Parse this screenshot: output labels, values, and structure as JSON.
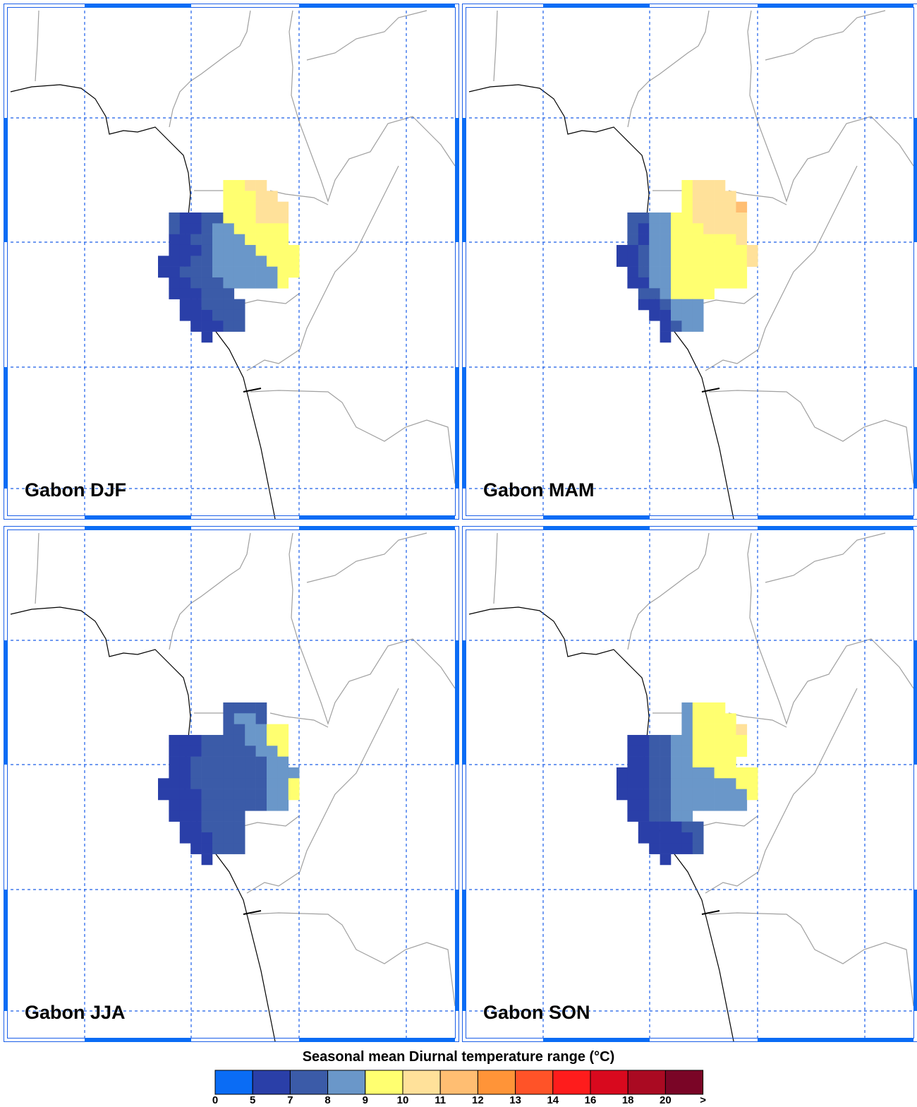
{
  "panels": [
    {
      "title": "Gabon DJF",
      "cells": [
        [
          null,
          null,
          null,
          null,
          null,
          null,
          9.5,
          9.5,
          10.5,
          10.5,
          null,
          null,
          null
        ],
        [
          null,
          null,
          null,
          null,
          null,
          null,
          9.5,
          9.5,
          9.5,
          10.5,
          10.5,
          null,
          null
        ],
        [
          null,
          null,
          null,
          null,
          null,
          null,
          9.5,
          9.5,
          9.5,
          10.5,
          10.5,
          10.5,
          null
        ],
        [
          null,
          7.5,
          6,
          6,
          7.5,
          7.5,
          9.5,
          9.5,
          9.5,
          10.5,
          10.5,
          10.5,
          null
        ],
        [
          null,
          7.5,
          6,
          6,
          7.5,
          8.5,
          8.5,
          9.5,
          9.5,
          9.5,
          9.5,
          9.5,
          null
        ],
        [
          null,
          6,
          6,
          7.5,
          7.5,
          8.5,
          8.5,
          8.5,
          9.5,
          9.5,
          9.5,
          9.5,
          null
        ],
        [
          null,
          6,
          6,
          6,
          7.5,
          8.5,
          8.5,
          8.5,
          8.5,
          9.5,
          9.5,
          9.5,
          9.5
        ],
        [
          6,
          6,
          6,
          7.5,
          7.5,
          8.5,
          8.5,
          8.5,
          8.5,
          8.5,
          9.5,
          9.5,
          9.5
        ],
        [
          6,
          6,
          7.5,
          7.5,
          7.5,
          8.5,
          8.5,
          8.5,
          8.5,
          8.5,
          8.5,
          9.5,
          9.5
        ],
        [
          null,
          6,
          6,
          7.5,
          7.5,
          7.5,
          8.5,
          8.5,
          8.5,
          8.5,
          8.5,
          9.5,
          null
        ],
        [
          null,
          6,
          6,
          6,
          7.5,
          7.5,
          7.5,
          null,
          null,
          null,
          null,
          null,
          null
        ],
        [
          null,
          null,
          6,
          6,
          7.5,
          7.5,
          7.5,
          7.5,
          null,
          null,
          null,
          null,
          null
        ],
        [
          null,
          null,
          6,
          6,
          6,
          7.5,
          7.5,
          7.5,
          null,
          null,
          null,
          null,
          null
        ],
        [
          null,
          null,
          null,
          6,
          6,
          6,
          7.5,
          7.5,
          null,
          null,
          null,
          null,
          null
        ],
        [
          null,
          null,
          null,
          null,
          6,
          null,
          null,
          null,
          null,
          null,
          null,
          null,
          null
        ]
      ]
    },
    {
      "title": "Gabon MAM",
      "cells": [
        [
          null,
          null,
          null,
          null,
          null,
          null,
          9.5,
          10.5,
          10.5,
          10.5,
          null,
          null,
          null
        ],
        [
          null,
          null,
          null,
          null,
          null,
          null,
          9.5,
          10.5,
          10.5,
          10.5,
          10.5,
          null,
          null
        ],
        [
          null,
          null,
          null,
          null,
          null,
          null,
          9.5,
          10.5,
          10.5,
          10.5,
          10.5,
          11.5,
          null
        ],
        [
          null,
          7.5,
          7.5,
          8.5,
          8.5,
          9.5,
          9.5,
          10.5,
          10.5,
          10.5,
          10.5,
          10.5,
          null
        ],
        [
          null,
          7.5,
          6,
          8.5,
          8.5,
          9.5,
          9.5,
          9.5,
          10.5,
          10.5,
          10.5,
          10.5,
          null
        ],
        [
          null,
          7.5,
          6,
          8.5,
          8.5,
          9.5,
          9.5,
          9.5,
          9.5,
          9.5,
          9.5,
          10.5,
          null
        ],
        [
          6,
          6,
          7.5,
          8.5,
          8.5,
          9.5,
          9.5,
          9.5,
          9.5,
          9.5,
          9.5,
          9.5,
          10.5
        ],
        [
          6,
          6,
          7.5,
          8.5,
          8.5,
          9.5,
          9.5,
          9.5,
          9.5,
          9.5,
          9.5,
          9.5,
          10.5
        ],
        [
          null,
          6,
          7.5,
          8.5,
          8.5,
          9.5,
          9.5,
          9.5,
          9.5,
          9.5,
          9.5,
          9.5,
          null
        ],
        [
          null,
          6,
          6,
          8.5,
          8.5,
          9.5,
          9.5,
          9.5,
          9.5,
          9.5,
          9.5,
          9.5,
          null
        ],
        [
          null,
          null,
          7.5,
          7.5,
          8.5,
          9.5,
          9.5,
          9.5,
          9.5,
          null,
          null,
          null,
          null
        ],
        [
          null,
          null,
          6,
          6,
          7.5,
          8.5,
          8.5,
          8.5,
          null,
          null,
          null,
          null,
          null
        ],
        [
          null,
          null,
          null,
          6,
          6,
          8.5,
          8.5,
          8.5,
          null,
          null,
          null,
          null,
          null
        ],
        [
          null,
          null,
          null,
          null,
          6,
          7.5,
          8.5,
          8.5,
          null,
          null,
          null,
          null,
          null
        ],
        [
          null,
          null,
          null,
          null,
          6,
          null,
          null,
          null,
          null,
          null,
          null,
          null,
          null
        ]
      ]
    },
    {
      "title": "Gabon JJA",
      "cells": [
        [
          null,
          null,
          null,
          null,
          null,
          null,
          7.5,
          7.5,
          7.5,
          7.5,
          null,
          null,
          null
        ],
        [
          null,
          null,
          null,
          null,
          null,
          null,
          7.5,
          8.5,
          8.5,
          7.5,
          null,
          null,
          null
        ],
        [
          null,
          null,
          null,
          null,
          null,
          null,
          7.5,
          7.5,
          8.5,
          8.5,
          9.5,
          9.5,
          null
        ],
        [
          null,
          6,
          6,
          6,
          7.5,
          7.5,
          7.5,
          7.5,
          8.5,
          8.5,
          9.5,
          9.5,
          null
        ],
        [
          null,
          6,
          6,
          6,
          7.5,
          7.5,
          7.5,
          7.5,
          7.5,
          8.5,
          8.5,
          9.5,
          null
        ],
        [
          null,
          6,
          6,
          7.5,
          7.5,
          7.5,
          7.5,
          7.5,
          7.5,
          7.5,
          8.5,
          8.5,
          null
        ],
        [
          null,
          6,
          6,
          7.5,
          7.5,
          7.5,
          7.5,
          7.5,
          7.5,
          7.5,
          8.5,
          8.5,
          8.5
        ],
        [
          6,
          6,
          6,
          7.5,
          7.5,
          7.5,
          7.5,
          7.5,
          7.5,
          7.5,
          8.5,
          8.5,
          9.5
        ],
        [
          6,
          6,
          6,
          6,
          7.5,
          7.5,
          7.5,
          7.5,
          7.5,
          7.5,
          8.5,
          8.5,
          9.5
        ],
        [
          null,
          6,
          6,
          6,
          7.5,
          7.5,
          7.5,
          7.5,
          7.5,
          7.5,
          8.5,
          8.5,
          null
        ],
        [
          null,
          6,
          6,
          6,
          7.5,
          7.5,
          7.5,
          7.5,
          null,
          null,
          null,
          null,
          null
        ],
        [
          null,
          null,
          6,
          6,
          7.5,
          7.5,
          7.5,
          7.5,
          null,
          null,
          null,
          null,
          null
        ],
        [
          null,
          null,
          6,
          6,
          6,
          7.5,
          7.5,
          7.5,
          null,
          null,
          null,
          null,
          null
        ],
        [
          null,
          null,
          null,
          6,
          6,
          7.5,
          7.5,
          7.5,
          null,
          null,
          null,
          null,
          null
        ],
        [
          null,
          null,
          null,
          null,
          6,
          null,
          null,
          null,
          null,
          null,
          null,
          null,
          null
        ]
      ]
    },
    {
      "title": "Gabon SON",
      "cells": [
        [
          null,
          null,
          null,
          null,
          null,
          null,
          8.5,
          9.5,
          9.5,
          9.5,
          null,
          null,
          null
        ],
        [
          null,
          null,
          null,
          null,
          null,
          null,
          8.5,
          9.5,
          9.5,
          9.5,
          9.5,
          null,
          null
        ],
        [
          null,
          null,
          null,
          null,
          null,
          null,
          8.5,
          9.5,
          9.5,
          9.5,
          9.5,
          10.5,
          null
        ],
        [
          null,
          6,
          6,
          7.5,
          7.5,
          8.5,
          8.5,
          9.5,
          9.5,
          9.5,
          9.5,
          9.5,
          null
        ],
        [
          null,
          6,
          6,
          7.5,
          7.5,
          8.5,
          8.5,
          9.5,
          9.5,
          9.5,
          9.5,
          9.5,
          null
        ],
        [
          null,
          6,
          6,
          7.5,
          7.5,
          8.5,
          8.5,
          9.5,
          9.5,
          9.5,
          9.5,
          null,
          null
        ],
        [
          6,
          6,
          6,
          7.5,
          7.5,
          8.5,
          8.5,
          8.5,
          8.5,
          9.5,
          9.5,
          9.5,
          9.5
        ],
        [
          6,
          6,
          6,
          7.5,
          7.5,
          8.5,
          8.5,
          8.5,
          8.5,
          8.5,
          8.5,
          9.5,
          9.5
        ],
        [
          6,
          6,
          6,
          7.5,
          7.5,
          8.5,
          8.5,
          8.5,
          8.5,
          8.5,
          8.5,
          8.5,
          9.5
        ],
        [
          null,
          6,
          6,
          7.5,
          7.5,
          8.5,
          8.5,
          8.5,
          8.5,
          8.5,
          8.5,
          8.5,
          null
        ],
        [
          null,
          6,
          6,
          7.5,
          7.5,
          8.5,
          8.5,
          null,
          null,
          null,
          null,
          null,
          null
        ],
        [
          null,
          null,
          6,
          6,
          6,
          6,
          7.5,
          7.5,
          null,
          null,
          null,
          null,
          null
        ],
        [
          null,
          null,
          6,
          6,
          6,
          6,
          6,
          7.5,
          null,
          null,
          null,
          null,
          null
        ],
        [
          null,
          null,
          null,
          6,
          6,
          6,
          6,
          7.5,
          null,
          null,
          null,
          null,
          null
        ],
        [
          null,
          null,
          null,
          null,
          6,
          null,
          null,
          null,
          null,
          null,
          null,
          null,
          null
        ]
      ]
    }
  ],
  "colorbar": {
    "title": "Seasonal mean Diurnal temperature range (°C)",
    "levels": [
      0,
      5,
      7,
      8,
      9,
      10,
      11,
      12,
      13,
      14,
      16,
      18,
      20
    ],
    "overflow_label": ">",
    "colors": [
      "#0a6cf5",
      "#2a3fa8",
      "#3b5ba8",
      "#6a97c9",
      "#ffff70",
      "#ffe19a",
      "#ffbe72",
      "#ff9438",
      "#ff5328",
      "#fe1c1c",
      "#d8091e",
      "#aa0a22",
      "#7a0526"
    ]
  }
}
